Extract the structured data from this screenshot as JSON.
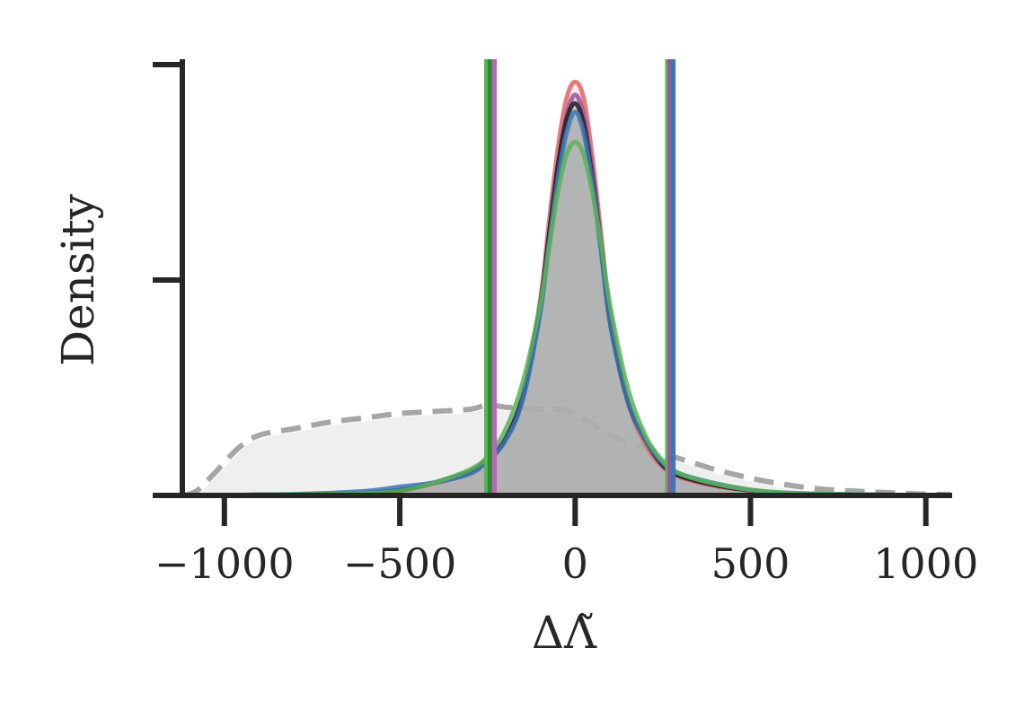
{
  "chart_data": {
    "type": "area",
    "xlabel": "ΔΛ̃",
    "ylabel": "Density",
    "xlim": [
      -1120,
      1070
    ],
    "ylim": [
      0,
      1.0
    ],
    "xticks": [
      -1000,
      -500,
      0,
      500,
      1000
    ],
    "xtick_labels": [
      "−1000",
      "−500",
      "0",
      "500",
      "1000"
    ],
    "yticks": [
      0,
      0.5,
      1.0
    ],
    "ytick_labels": [
      "",
      "",
      ""
    ],
    "grid": false,
    "legend": "none",
    "prior": {
      "style": "dashed",
      "color": "#a6a6a6",
      "fill": "#efefef",
      "x": [
        -1120,
        -1080,
        -1030,
        -960,
        -900,
        -800,
        -700,
        -600,
        -500,
        -400,
        -300,
        -250,
        -200,
        -100,
        -50,
        0,
        100,
        200,
        300,
        400,
        500,
        600,
        700,
        800,
        900,
        1000,
        1070
      ],
      "y": [
        0.0,
        0.01,
        0.05,
        0.11,
        0.14,
        0.155,
        0.17,
        0.18,
        0.19,
        0.195,
        0.2,
        0.21,
        0.205,
        0.2,
        0.2,
        0.19,
        0.14,
        0.11,
        0.085,
        0.06,
        0.04,
        0.025,
        0.015,
        0.01,
        0.006,
        0.003,
        0.002
      ]
    },
    "pooled": {
      "color": "#b3b3b3",
      "x": [
        -1120,
        -800,
        -600,
        -500,
        -400,
        -300,
        -250,
        -200,
        -150,
        -100,
        -75,
        -50,
        -25,
        0,
        25,
        50,
        75,
        100,
        150,
        200,
        250,
        300,
        400,
        500,
        600,
        800,
        1070
      ],
      "y": [
        0.0,
        0.002,
        0.006,
        0.012,
        0.03,
        0.055,
        0.085,
        0.13,
        0.22,
        0.41,
        0.57,
        0.72,
        0.83,
        0.88,
        0.83,
        0.7,
        0.55,
        0.39,
        0.22,
        0.13,
        0.07,
        0.045,
        0.025,
        0.012,
        0.005,
        0.002,
        0.0
      ]
    },
    "series": [
      {
        "color": "#e06666",
        "x": [
          -1120,
          -800,
          -600,
          -500,
          -400,
          -300,
          -250,
          -200,
          -150,
          -100,
          -75,
          -50,
          -25,
          0,
          25,
          50,
          75,
          100,
          150,
          200,
          250,
          300,
          400,
          500,
          600,
          800,
          1070
        ],
        "y": [
          0.0,
          0.002,
          0.006,
          0.012,
          0.028,
          0.052,
          0.08,
          0.13,
          0.23,
          0.45,
          0.63,
          0.8,
          0.92,
          0.96,
          0.92,
          0.78,
          0.6,
          0.42,
          0.22,
          0.12,
          0.065,
          0.042,
          0.022,
          0.011,
          0.005,
          0.002,
          0.0
        ]
      },
      {
        "color": "#9c4f9c",
        "x": [
          -1120,
          -800,
          -600,
          -500,
          -400,
          -300,
          -250,
          -200,
          -150,
          -100,
          -75,
          -50,
          -25,
          0,
          25,
          50,
          75,
          100,
          150,
          200,
          250,
          300,
          400,
          500,
          600,
          800,
          1070
        ],
        "y": [
          0.0,
          0.002,
          0.006,
          0.013,
          0.03,
          0.055,
          0.085,
          0.13,
          0.225,
          0.43,
          0.6,
          0.76,
          0.88,
          0.93,
          0.88,
          0.75,
          0.58,
          0.41,
          0.22,
          0.13,
          0.07,
          0.045,
          0.024,
          0.012,
          0.005,
          0.002,
          0.0
        ]
      },
      {
        "color": "#1f1f1f",
        "x": [
          -1120,
          -800,
          -600,
          -500,
          -400,
          -300,
          -250,
          -200,
          -150,
          -100,
          -75,
          -50,
          -25,
          0,
          25,
          50,
          75,
          100,
          150,
          200,
          250,
          300,
          400,
          500,
          600,
          800,
          1070
        ],
        "y": [
          0.0,
          0.002,
          0.006,
          0.012,
          0.03,
          0.055,
          0.085,
          0.13,
          0.23,
          0.44,
          0.6,
          0.76,
          0.87,
          0.91,
          0.86,
          0.73,
          0.57,
          0.4,
          0.22,
          0.13,
          0.07,
          0.045,
          0.024,
          0.012,
          0.005,
          0.002,
          0.0
        ]
      },
      {
        "color": "#3a78b8",
        "x": [
          -1120,
          -800,
          -600,
          -500,
          -400,
          -300,
          -250,
          -200,
          -150,
          -100,
          -75,
          -50,
          -25,
          0,
          25,
          50,
          75,
          100,
          150,
          200,
          250,
          300,
          400,
          500,
          600,
          800,
          1070
        ],
        "y": [
          0.0,
          0.003,
          0.01,
          0.02,
          0.03,
          0.05,
          0.08,
          0.125,
          0.22,
          0.42,
          0.58,
          0.73,
          0.84,
          0.89,
          0.84,
          0.72,
          0.56,
          0.4,
          0.22,
          0.13,
          0.075,
          0.05,
          0.028,
          0.013,
          0.006,
          0.002,
          0.0
        ]
      },
      {
        "color": "#5bb35b",
        "x": [
          -1120,
          -800,
          -600,
          -500,
          -400,
          -300,
          -250,
          -200,
          -150,
          -100,
          -75,
          -50,
          -25,
          0,
          25,
          50,
          75,
          100,
          150,
          200,
          250,
          300,
          400,
          500,
          600,
          800,
          1070
        ],
        "y": [
          0.0,
          0.002,
          0.005,
          0.01,
          0.03,
          0.06,
          0.09,
          0.15,
          0.26,
          0.44,
          0.57,
          0.7,
          0.79,
          0.82,
          0.79,
          0.7,
          0.58,
          0.44,
          0.25,
          0.14,
          0.08,
          0.05,
          0.027,
          0.013,
          0.006,
          0.002,
          0.0
        ]
      }
    ],
    "vlines": [
      {
        "x": -253,
        "color": "#5bb35b"
      },
      {
        "x": -243,
        "color": "#2e8b2e"
      },
      {
        "x": -230,
        "color": "#c060c0"
      },
      {
        "x": 263,
        "color": "#5bb35b"
      },
      {
        "x": 270,
        "color": "#9c4f9c"
      },
      {
        "x": 280,
        "color": "#3a78b8"
      }
    ]
  }
}
